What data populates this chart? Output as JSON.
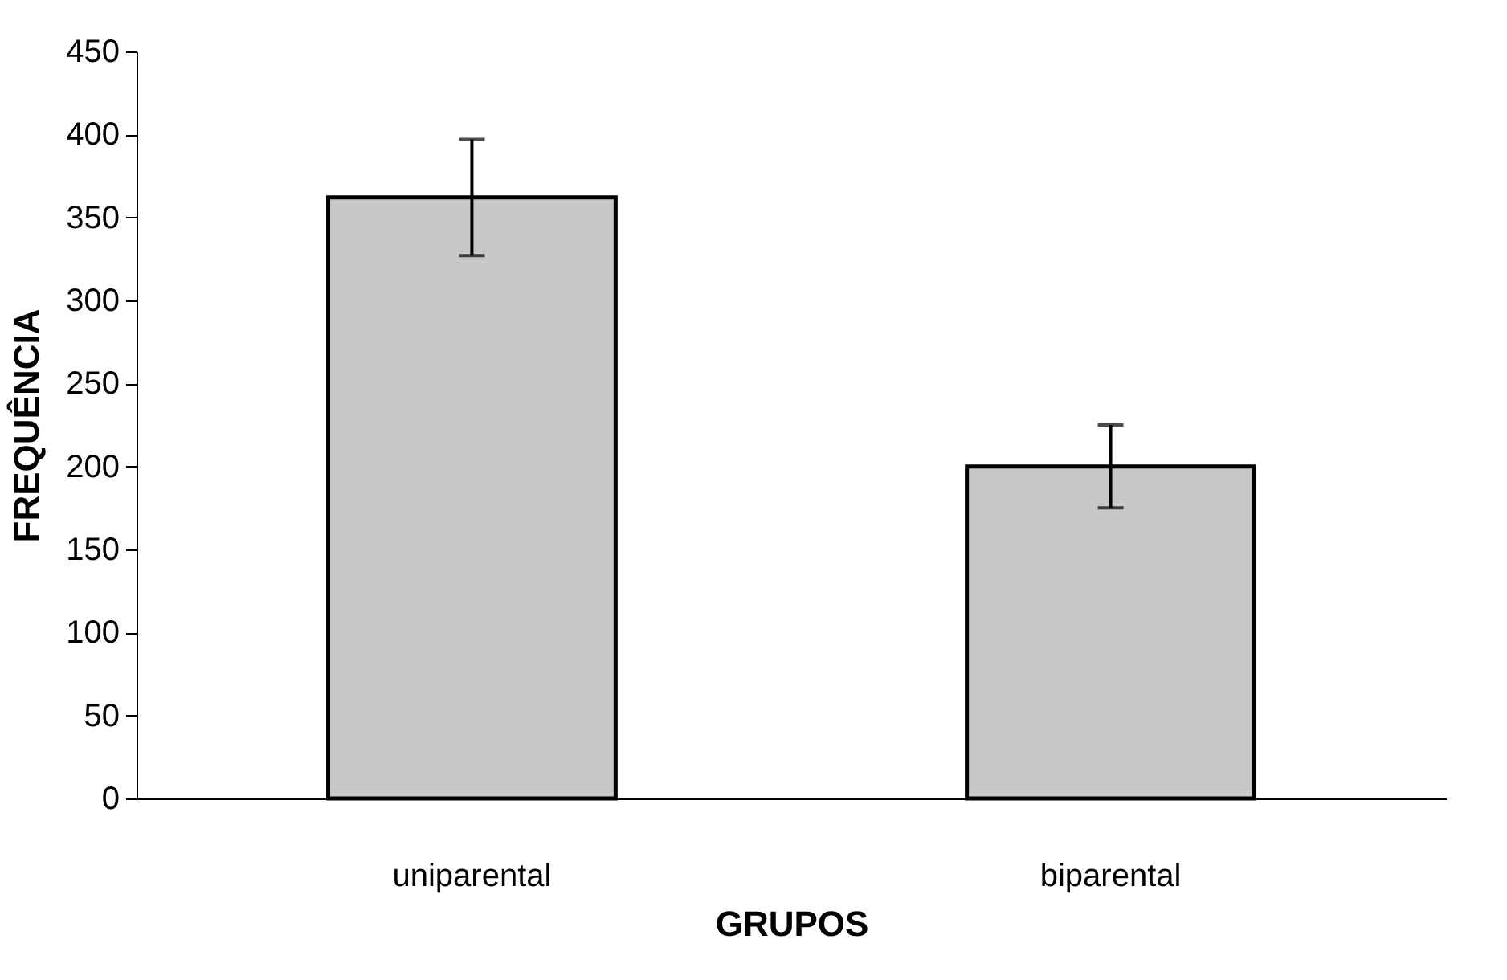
{
  "chart_data": {
    "type": "bar",
    "xlabel": "GRUPOS",
    "ylabel": "FREQUÊNCIA",
    "categories": [
      "uniparental",
      "biparental"
    ],
    "values": [
      362,
      200
    ],
    "errors": [
      35,
      25
    ],
    "color": "#c8c8c8",
    "ylim": [
      0,
      450
    ],
    "yticks": [
      0,
      50,
      100,
      150,
      200,
      250,
      300,
      350,
      400,
      450
    ],
    "grid": false
  }
}
